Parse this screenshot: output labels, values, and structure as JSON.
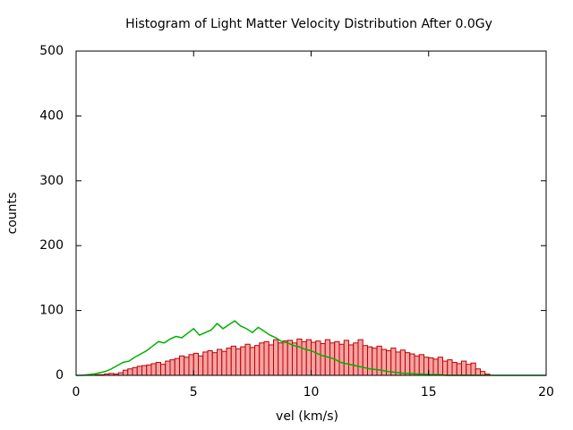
{
  "chart_data": {
    "type": "histogram",
    "title": "Histogram of Light Matter Velocity Distribution After 0.0Gy",
    "xlabel": "vel (km/s)",
    "ylabel": "counts",
    "bins": [
      0,
      0.2,
      0.4,
      0.6,
      0.8,
      1,
      1.2,
      1.4,
      1.6,
      1.8,
      2,
      2.2,
      2.4,
      2.6,
      2.8,
      3,
      3.2,
      3.4,
      3.6,
      3.8,
      4,
      4.2,
      4.4,
      4.6,
      4.8,
      5,
      5.2,
      5.4,
      5.6,
      5.8,
      6,
      6.2,
      6.4,
      6.6,
      6.8,
      7,
      7.2,
      7.4,
      7.6,
      7.8,
      8,
      8.2,
      8.4,
      8.6,
      8.8,
      9,
      9.2,
      9.4,
      9.6,
      9.8,
      10,
      10.2,
      10.4,
      10.6,
      10.8,
      11,
      11.2,
      11.4,
      11.6,
      11.8,
      12,
      12.2,
      12.4,
      12.6,
      12.8,
      13,
      13.2,
      13.4,
      13.6,
      13.8,
      14,
      14.2,
      14.4,
      14.6,
      14.8,
      15,
      15.2,
      15.4,
      15.6,
      15.8,
      16,
      16.2,
      16.4,
      16.6,
      16.8,
      17,
      17.2,
      17.4,
      17.6,
      17.8,
      18
    ],
    "counts": [
      0,
      0,
      0,
      0,
      1,
      1,
      2,
      3,
      2,
      4,
      8,
      10,
      12,
      14,
      15,
      16,
      18,
      20,
      17,
      22,
      24,
      26,
      30,
      28,
      32,
      34,
      30,
      36,
      38,
      35,
      40,
      37,
      42,
      45,
      41,
      44,
      48,
      43,
      46,
      50,
      52,
      47,
      55,
      50,
      53,
      54,
      50,
      56,
      52,
      55,
      51,
      53,
      49,
      55,
      50,
      52,
      48,
      54,
      47,
      50,
      55,
      46,
      44,
      42,
      45,
      40,
      38,
      42,
      36,
      39,
      35,
      33,
      30,
      32,
      28,
      27,
      25,
      28,
      22,
      24,
      20,
      18,
      22,
      17,
      19,
      10,
      6,
      2,
      0,
      0
    ],
    "color": "#f4a3a3",
    "edgecolor": "#c00000",
    "overlay": {
      "type": "line",
      "color": "#00b000",
      "x": [
        0,
        0.25,
        0.5,
        0.75,
        1,
        1.25,
        1.5,
        1.75,
        2,
        2.25,
        2.5,
        2.75,
        3,
        3.25,
        3.5,
        3.75,
        4,
        4.25,
        4.5,
        4.75,
        5,
        5.25,
        5.5,
        5.75,
        6,
        6.25,
        6.5,
        6.75,
        7,
        7.25,
        7.5,
        7.75,
        8,
        8.25,
        8.5,
        8.75,
        9,
        9.25,
        9.5,
        9.75,
        10,
        10.25,
        10.5,
        10.75,
        11,
        11.25,
        11.5,
        11.75,
        12,
        12.25,
        12.5,
        12.75,
        13,
        13.25,
        13.5,
        13.75,
        14,
        14.25,
        14.5,
        14.75,
        15,
        15.25,
        15.5,
        15.75,
        16,
        16.25,
        16.5,
        16.75,
        17,
        17.25,
        17.5,
        17.75,
        18,
        18.25,
        18.5,
        18.75,
        19,
        19.25,
        19.5,
        19.75,
        20
      ],
      "values": [
        0,
        0,
        1,
        2,
        4,
        6,
        10,
        15,
        20,
        22,
        28,
        33,
        38,
        45,
        52,
        50,
        56,
        60,
        58,
        65,
        72,
        62,
        66,
        70,
        80,
        72,
        78,
        84,
        76,
        72,
        66,
        74,
        68,
        62,
        58,
        52,
        50,
        46,
        44,
        40,
        38,
        34,
        30,
        28,
        25,
        20,
        18,
        16,
        14,
        12,
        10,
        9,
        8,
        6,
        5,
        4,
        3,
        3,
        2,
        2,
        1,
        1,
        1,
        0,
        0,
        0,
        0,
        0,
        0,
        0,
        0,
        0,
        0,
        0,
        0,
        0,
        0,
        0,
        0,
        0,
        0
      ]
    },
    "xlim": [
      0,
      20
    ],
    "ylim": [
      0,
      500
    ],
    "xticks": [
      0,
      5,
      10,
      15,
      20
    ],
    "yticks": [
      0,
      100,
      200,
      300,
      400,
      500
    ]
  }
}
